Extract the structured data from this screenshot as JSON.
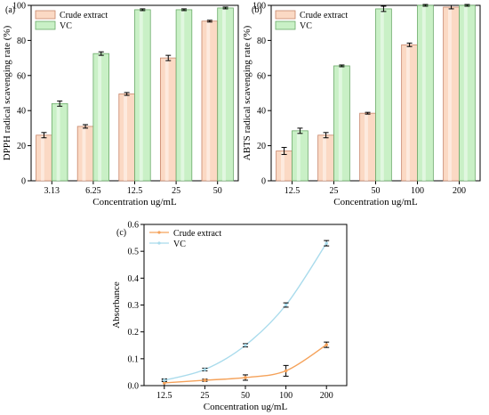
{
  "colors": {
    "crude": "#fbd9c4",
    "crude_stroke": "#c8866a",
    "vc": "#c9f0c6",
    "vc_stroke": "#6aaa68",
    "line_crude": "#f5a25a",
    "line_vc": "#a9dbec"
  },
  "chart_data": [
    {
      "type": "bar",
      "panel_label": "(a)",
      "categories": [
        "3.13",
        "6.25",
        "12.5",
        "25",
        "50"
      ],
      "series": [
        {
          "name": "Crude extract",
          "values": [
            26,
            31,
            49.5,
            70,
            91
          ],
          "errors": [
            1.5,
            1,
            0.8,
            1.5,
            0.5
          ]
        },
        {
          "name": "VC",
          "values": [
            44,
            72.5,
            97.5,
            97.5,
            98.5
          ],
          "errors": [
            1.5,
            1,
            0.5,
            0.5,
            0.5
          ]
        }
      ],
      "xlabel": "Concentration ug/mL",
      "ylabel": "DPPH radical scavenging rate (%)",
      "ylim": [
        0,
        100
      ],
      "yticks": [
        0,
        20,
        40,
        60,
        80,
        100
      ],
      "legend": "top-left"
    },
    {
      "type": "bar",
      "panel_label": "(b)",
      "categories": [
        "12.5",
        "25",
        "50",
        "100",
        "200"
      ],
      "series": [
        {
          "name": "Crude extract",
          "values": [
            17,
            26,
            38.5,
            77.5,
            99
          ],
          "errors": [
            2,
            1.5,
            0.5,
            1,
            1
          ]
        },
        {
          "name": "VC",
          "values": [
            28.5,
            65.5,
            98,
            100,
            100
          ],
          "errors": [
            1.5,
            0.5,
            1.5,
            0.5,
            0.5
          ]
        }
      ],
      "xlabel": "Concentration ug/mL",
      "ylabel": "ABTS radical scavenging rate (%)",
      "ylim": [
        0,
        100
      ],
      "yticks": [
        0,
        20,
        40,
        60,
        80,
        100
      ],
      "legend": "top-left"
    },
    {
      "type": "line",
      "panel_label": "(c)",
      "categories": [
        "12.5",
        "25",
        "50",
        "100",
        "200"
      ],
      "series": [
        {
          "name": "Crude extract",
          "values": [
            0.01,
            0.02,
            0.03,
            0.055,
            0.152
          ],
          "errors": [
            0.01,
            0.004,
            0.01,
            0.02,
            0.01
          ]
        },
        {
          "name": "VC",
          "values": [
            0.02,
            0.06,
            0.15,
            0.3,
            0.53
          ],
          "errors": [
            0.005,
            0.005,
            0.006,
            0.008,
            0.01
          ]
        }
      ],
      "xlabel": "Concentration ug/mL",
      "ylabel": "Absorbance",
      "ylim": [
        0,
        0.6
      ],
      "yticks": [
        "0.0",
        "0.1",
        "0.2",
        "0.3",
        "0.4",
        "0.5",
        "0.6"
      ],
      "legend": "top-left"
    }
  ]
}
